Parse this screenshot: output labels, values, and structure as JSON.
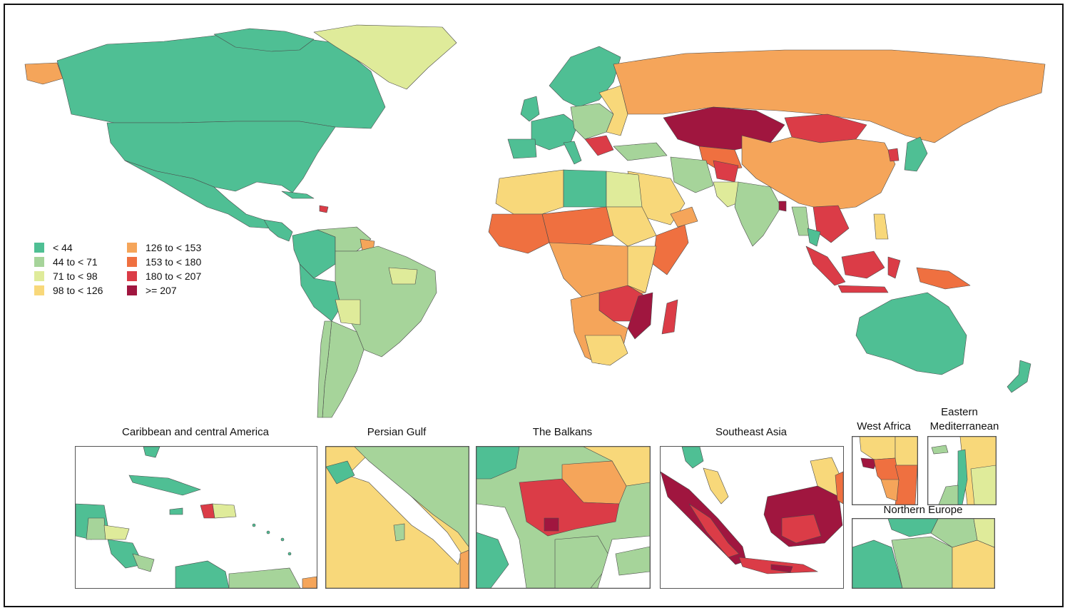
{
  "legend": {
    "items": [
      {
        "label": "< 44",
        "color": "#4fbf94"
      },
      {
        "label": "44 to < 71",
        "color": "#a6d49a"
      },
      {
        "label": "71 to < 98",
        "color": "#dfeb9a"
      },
      {
        "label": "98 to < 126",
        "color": "#f8d87a"
      },
      {
        "label": "126 to < 153",
        "color": "#f5a55a"
      },
      {
        "label": "153 to < 180",
        "color": "#ef7040"
      },
      {
        "label": "180 to < 207",
        "color": "#db3c47"
      },
      {
        "label": ">= 207",
        "color": "#a0163f"
      }
    ]
  },
  "insets": {
    "caribbean": "Caribbean and central America",
    "persian_gulf": "Persian Gulf",
    "balkans": "The Balkans",
    "southeast_asia": "Southeast Asia",
    "west_africa": "West Africa",
    "eastern_med_line1": "Eastern",
    "eastern_med_line2": "Mediterranean",
    "northern_europe": "Northern Europe"
  },
  "colors": {
    "sea": "#ffffff",
    "border": "#555555"
  }
}
